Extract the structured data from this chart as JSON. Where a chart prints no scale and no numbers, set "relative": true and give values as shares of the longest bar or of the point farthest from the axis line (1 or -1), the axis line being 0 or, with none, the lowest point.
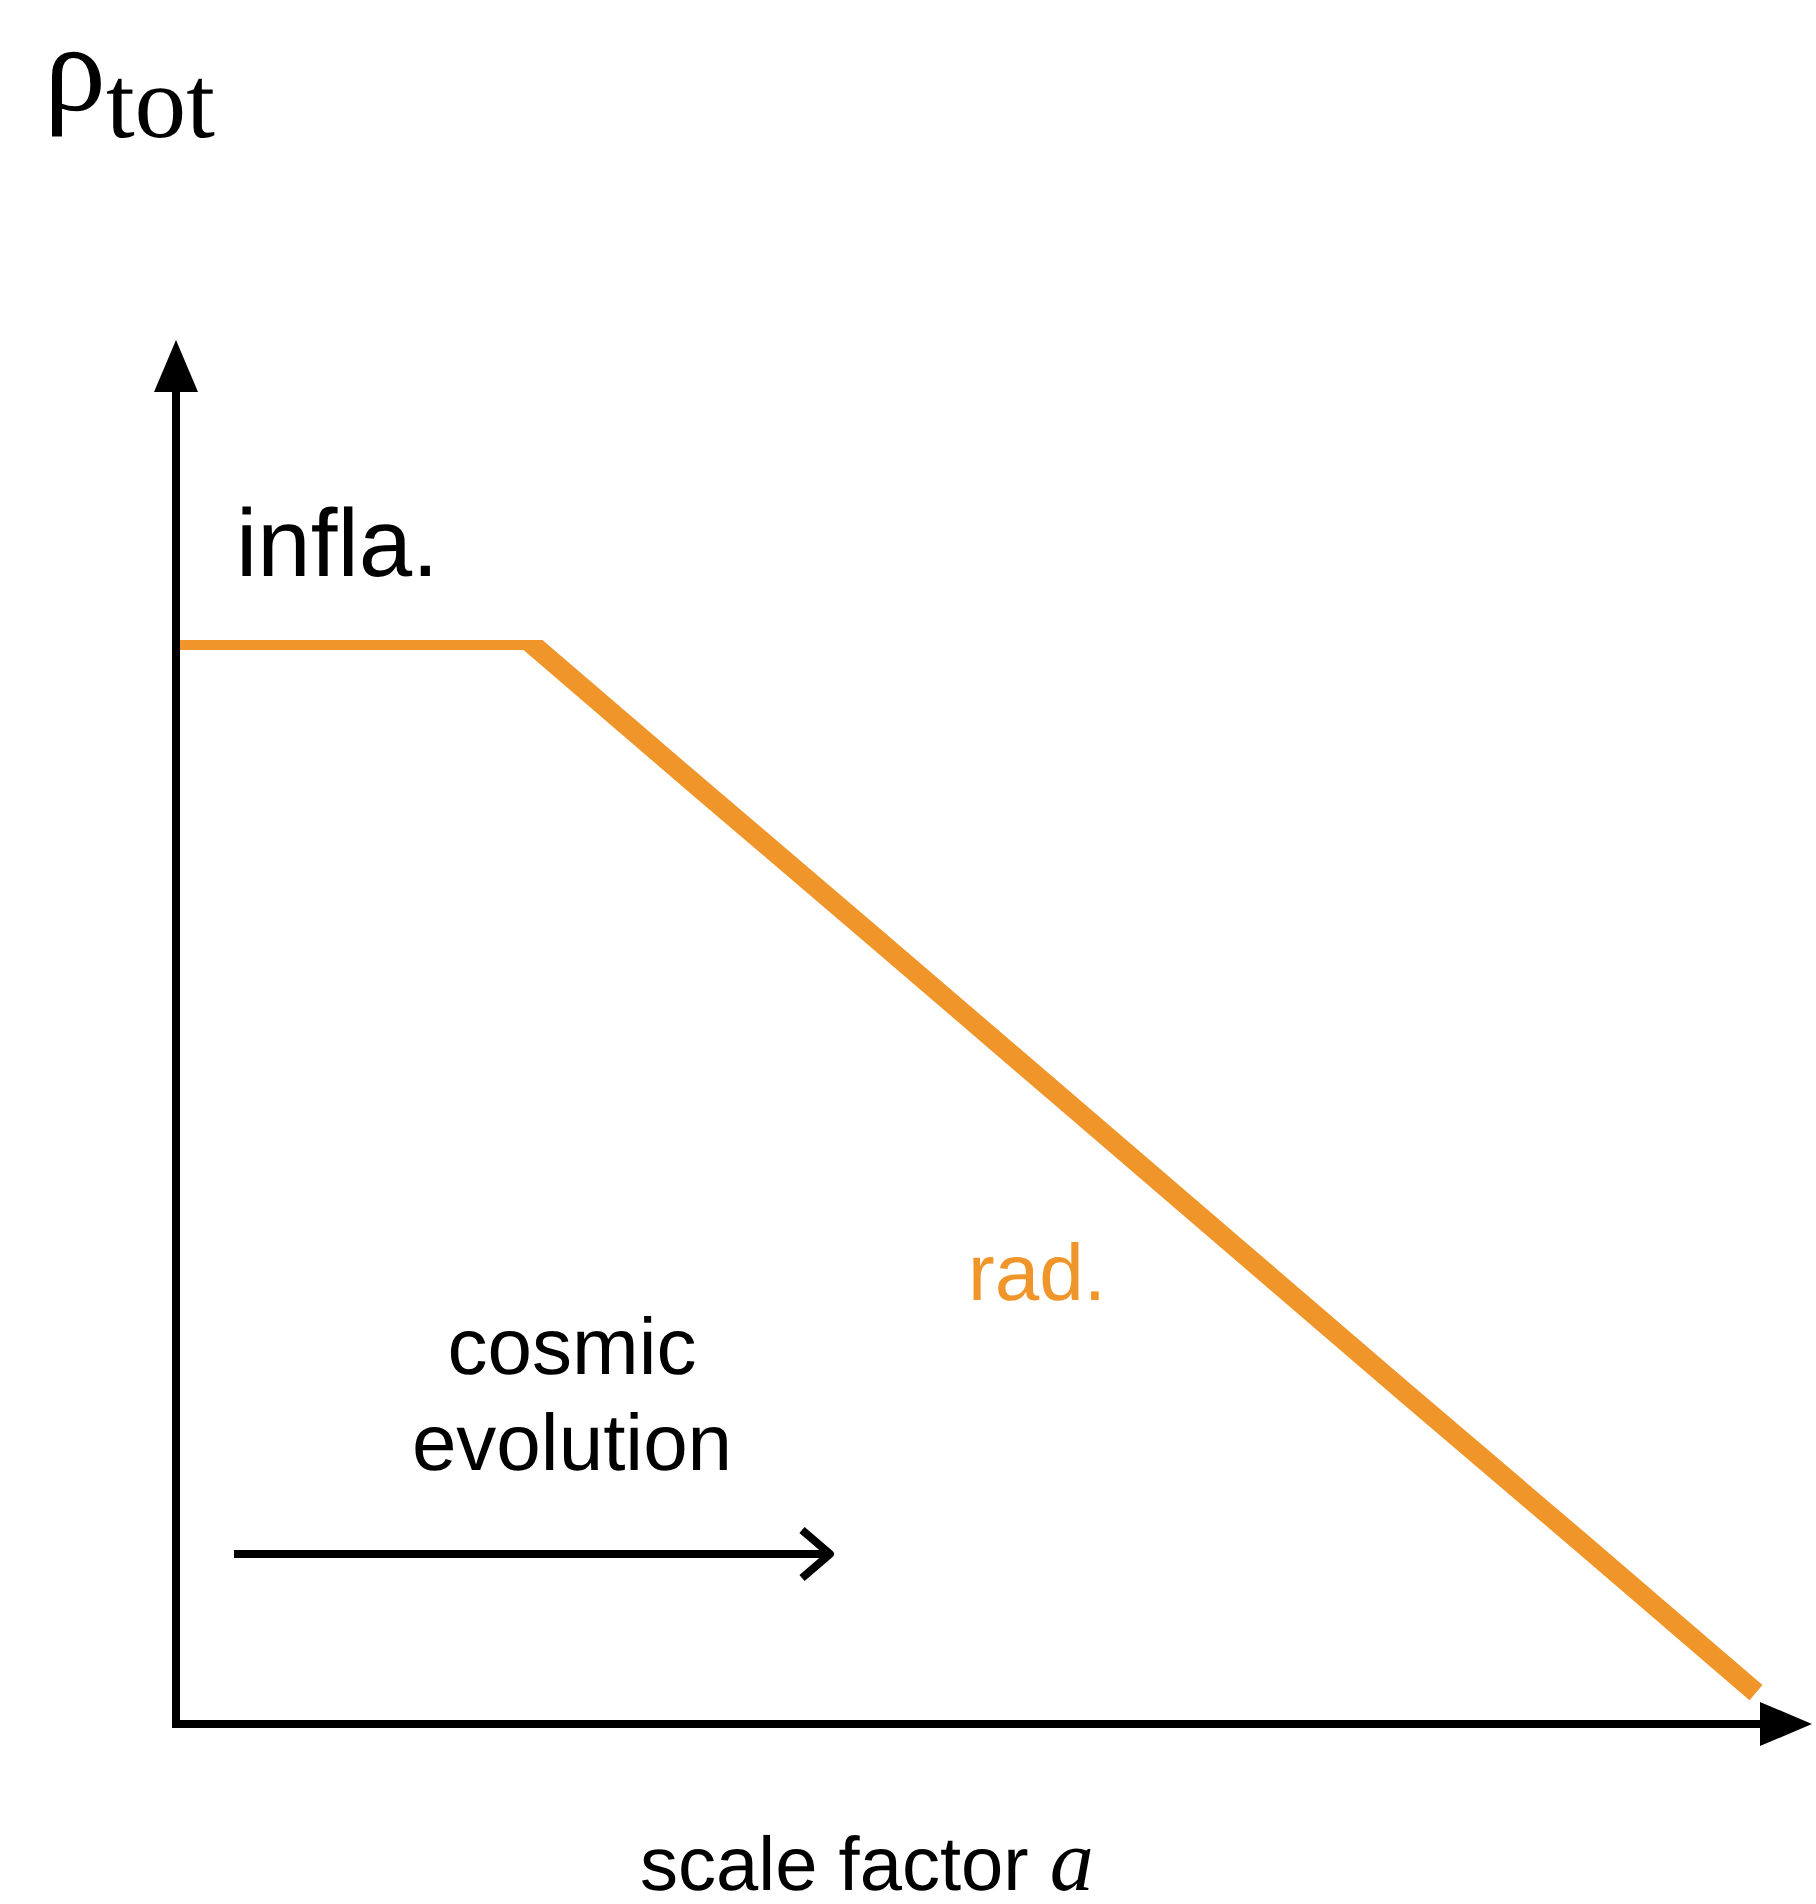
{
  "chart_data": {
    "type": "line",
    "relative": true,
    "ylabel": "ρ$_{tot}$",
    "xlabel": "scale factor a",
    "categories": [
      null,
      null,
      null,
      null,
      null,
      null,
      null,
      null,
      null,
      null
    ],
    "series": [
      {
        "color": "#f0952a",
        "values": [
          1,
          1,
          1,
          0.861,
          0.723,
          0.584,
          0.445,
          0.306,
          0.168,
          0.029
        ]
      }
    ],
    "annotations": [
      "infla.",
      "rad.",
      "cosmic evolution"
    ],
    "legend": false,
    "marker": "none",
    "line_style": "solid"
  }
}
